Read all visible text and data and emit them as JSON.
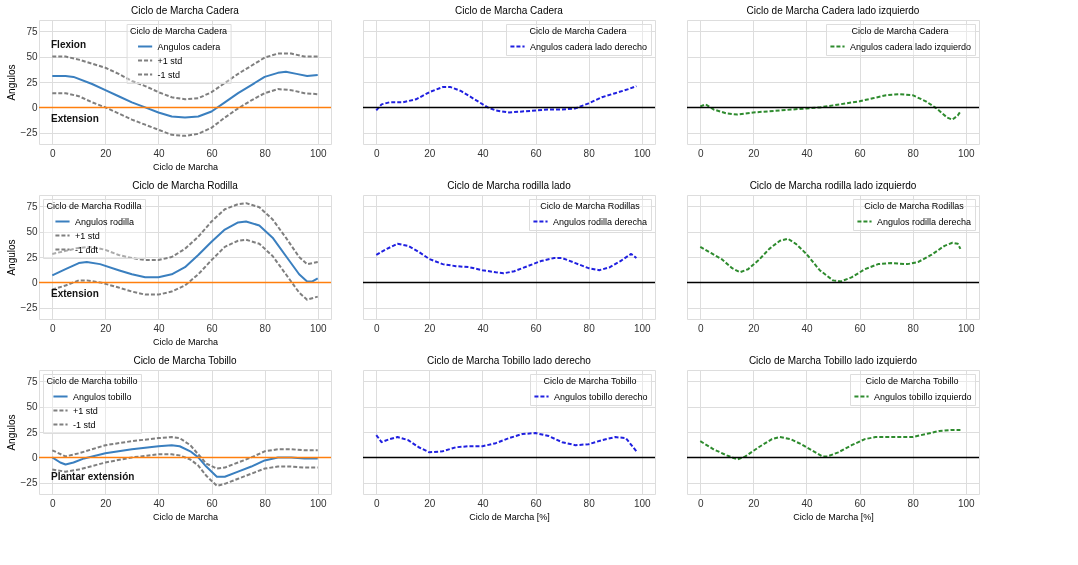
{
  "chart_data": [
    {
      "type": "line",
      "title": "Ciclo de Marcha Cadera",
      "xlabel": "Ciclo de Marcha",
      "ylabel": "Angulos",
      "legend_title": "Ciclo de Marcha Cadera",
      "legend": "top",
      "grid": true,
      "xlim": [
        -5,
        105
      ],
      "ylim": [
        -36,
        86
      ],
      "xticks": [
        0,
        20,
        40,
        60,
        80,
        100
      ],
      "yticks": [
        -25,
        0,
        25,
        50,
        75
      ],
      "ref_lines": [
        {
          "axis": "y",
          "value": 0,
          "color": "#ff7f0e"
        }
      ],
      "annotations": [
        "Flexion",
        "Extension"
      ],
      "series": [
        {
          "name": "Angulos cadera",
          "color": "#3a7fbf",
          "line_style": "solid",
          "x": [
            0,
            5,
            8,
            15,
            20,
            25,
            30,
            35,
            40,
            45,
            50,
            55,
            60,
            65,
            70,
            75,
            80,
            85,
            88,
            92,
            96,
            100
          ],
          "values": [
            31,
            31,
            30,
            23,
            17,
            11,
            5,
            0,
            -5,
            -9,
            -10,
            -9,
            -4,
            5,
            14,
            22,
            30,
            34,
            35,
            33,
            31,
            32
          ]
        },
        {
          "name": "+1 std",
          "color": "#7f7f7f",
          "line_style": "dashed",
          "x": [
            0,
            5,
            10,
            20,
            25,
            30,
            35,
            40,
            45,
            50,
            55,
            60,
            65,
            70,
            75,
            80,
            85,
            90,
            95,
            100
          ],
          "values": [
            50,
            50,
            47,
            39,
            33,
            26,
            21,
            15,
            10,
            8,
            9,
            15,
            24,
            33,
            41,
            49,
            53,
            53,
            50,
            50
          ]
        },
        {
          "name": "-1 std",
          "color": "#7f7f7f",
          "line_style": "dashed",
          "x": [
            0,
            5,
            10,
            15,
            20,
            25,
            30,
            35,
            40,
            45,
            50,
            55,
            60,
            65,
            70,
            75,
            80,
            85,
            90,
            95,
            100
          ],
          "values": [
            14,
            14,
            11,
            5,
            0,
            -6,
            -12,
            -17,
            -22,
            -27,
            -28,
            -26,
            -20,
            -10,
            -1,
            7,
            14,
            18,
            17,
            14,
            13
          ]
        }
      ]
    },
    {
      "type": "line",
      "title": "Ciclo de Marcha Cadera",
      "legend_title": "Ciclo de Marcha Cadera",
      "legend": "top right",
      "grid": true,
      "tick_labels": "x",
      "xlim": [
        -5,
        105
      ],
      "ylim": [
        -36,
        86
      ],
      "xticks": [
        0,
        20,
        40,
        60,
        80,
        100
      ],
      "yticks": [
        -25,
        0,
        25,
        50,
        75
      ],
      "ref_lines": [
        {
          "axis": "y",
          "value": 0,
          "color": "#000000"
        }
      ],
      "series": [
        {
          "name": "Angulos cadera lado derecho",
          "color": "#2020e0",
          "line_style": "dashed",
          "x": [
            0,
            2,
            5,
            10,
            15,
            20,
            25,
            28,
            32,
            37,
            42,
            45,
            50,
            55,
            60,
            65,
            70,
            75,
            80,
            85,
            90,
            95,
            98
          ],
          "values": [
            -3,
            3,
            5,
            5,
            8,
            15,
            20,
            20,
            16,
            8,
            0,
            -3,
            -5,
            -4,
            -3,
            -2,
            -2,
            -1,
            4,
            10,
            14,
            18,
            21
          ]
        }
      ]
    },
    {
      "type": "line",
      "title": "Ciclo de Marcha Cadera lado izquierdo",
      "legend_title": "Ciclo de Marcha Cadera",
      "legend": "top right",
      "grid": true,
      "tick_labels": "x",
      "xlim": [
        -5,
        105
      ],
      "ylim": [
        -36,
        86
      ],
      "xticks": [
        0,
        20,
        40,
        60,
        80,
        100
      ],
      "yticks": [
        -25,
        0,
        25,
        50,
        75
      ],
      "ref_lines": [
        {
          "axis": "y",
          "value": 0,
          "color": "#000000"
        }
      ],
      "series": [
        {
          "name": "Angulos cadera lado izquierdo",
          "color": "#2e8b2e",
          "line_style": "dashed",
          "x": [
            0,
            2,
            5,
            10,
            14,
            20,
            30,
            40,
            45,
            50,
            55,
            60,
            65,
            70,
            75,
            80,
            85,
            89,
            93,
            95,
            97,
            98
          ],
          "values": [
            1,
            3,
            -2,
            -6,
            -7,
            -5,
            -3,
            -1,
            0,
            2,
            4,
            6,
            9,
            12,
            13,
            12,
            6,
            -1,
            -10,
            -12,
            -8,
            -4
          ]
        }
      ]
    },
    {
      "type": "line",
      "title": "Ciclo de Marcha Rodilla",
      "xlabel": "Ciclo de Marcha",
      "ylabel": "Angulos",
      "legend_title": "Ciclo de Marcha Rodilla",
      "legend": "top left",
      "grid": true,
      "xlim": [
        -5,
        105
      ],
      "ylim": [
        -36,
        86
      ],
      "xticks": [
        0,
        20,
        40,
        60,
        80,
        100
      ],
      "yticks": [
        -25,
        0,
        25,
        50,
        75
      ],
      "ref_lines": [
        {
          "axis": "y",
          "value": 0,
          "color": "#ff7f0e"
        }
      ],
      "annotations": [
        "Extension"
      ],
      "series": [
        {
          "name": "Angulos rodilla",
          "color": "#3a7fbf",
          "line_style": "solid",
          "x": [
            0,
            5,
            10,
            13,
            18,
            25,
            30,
            35,
            40,
            45,
            50,
            55,
            60,
            65,
            70,
            73,
            78,
            83,
            88,
            93,
            96,
            98,
            100
          ],
          "values": [
            7,
            13,
            19,
            20,
            18,
            12,
            8,
            5,
            5,
            8,
            15,
            27,
            40,
            52,
            59,
            60,
            56,
            44,
            26,
            8,
            1,
            1,
            4
          ]
        },
        {
          "name": "+1 std",
          "color": "#7f7f7f",
          "line_style": "dashed",
          "x": [
            0,
            10,
            15,
            20,
            25,
            30,
            35,
            40,
            45,
            50,
            55,
            60,
            65,
            70,
            73,
            78,
            83,
            88,
            93,
            96,
            100
          ],
          "values": [
            28,
            34,
            35,
            32,
            27,
            24,
            22,
            22,
            25,
            33,
            45,
            60,
            72,
            77,
            78,
            74,
            62,
            44,
            25,
            18,
            20
          ]
        },
        {
          "name": "-1 ddt",
          "color": "#7f7f7f",
          "line_style": "dashed",
          "x": [
            0,
            5,
            10,
            13,
            18,
            25,
            30,
            35,
            40,
            45,
            50,
            55,
            60,
            65,
            70,
            73,
            78,
            83,
            88,
            93,
            96,
            100
          ],
          "values": [
            -7,
            -3,
            2,
            2,
            0,
            -5,
            -9,
            -12,
            -12,
            -9,
            -3,
            8,
            22,
            35,
            41,
            42,
            38,
            26,
            8,
            -10,
            -17,
            -14
          ]
        }
      ]
    },
    {
      "type": "line",
      "title": "Ciclo de Marcha rodilla lado",
      "legend_title": "Ciclo de Marcha Rodillas",
      "legend": "top right",
      "grid": true,
      "tick_labels": "x",
      "xlim": [
        -5,
        105
      ],
      "ylim": [
        -36,
        86
      ],
      "xticks": [
        0,
        20,
        40,
        60,
        80,
        100
      ],
      "yticks": [
        -25,
        0,
        25,
        50,
        75
      ],
      "ref_lines": [
        {
          "axis": "y",
          "value": 0,
          "color": "#000000"
        }
      ],
      "series": [
        {
          "name": "Angulos rodilla derecha",
          "color": "#2020e0",
          "line_style": "dashed",
          "x": [
            0,
            4,
            8,
            12,
            16,
            20,
            25,
            30,
            35,
            40,
            45,
            48,
            52,
            57,
            62,
            67,
            70,
            75,
            80,
            84,
            88,
            92,
            96,
            98
          ],
          "values": [
            27,
            33,
            38,
            36,
            30,
            23,
            18,
            16,
            15,
            12,
            10,
            9,
            11,
            16,
            21,
            24,
            24,
            19,
            14,
            12,
            15,
            21,
            28,
            24
          ]
        }
      ]
    },
    {
      "type": "line",
      "title": "Ciclo de Marcha rodilla lado izquierdo",
      "legend_title": "Ciclo de Marcha Rodillas",
      "legend": "top right",
      "grid": true,
      "tick_labels": "x",
      "xlim": [
        -5,
        105
      ],
      "ylim": [
        -36,
        86
      ],
      "xticks": [
        0,
        20,
        40,
        60,
        80,
        100
      ],
      "yticks": [
        -25,
        0,
        25,
        50,
        75
      ],
      "ref_lines": [
        {
          "axis": "y",
          "value": 0,
          "color": "#000000"
        }
      ],
      "series": [
        {
          "name": "Angulos rodilla derecha",
          "color": "#2e8b2e",
          "line_style": "dashed",
          "x": [
            0,
            4,
            8,
            12,
            15,
            18,
            22,
            26,
            30,
            33,
            36,
            40,
            45,
            50,
            53,
            57,
            62,
            67,
            72,
            78,
            82,
            87,
            92,
            95,
            97,
            98
          ],
          "values": [
            35,
            29,
            23,
            14,
            10,
            13,
            22,
            33,
            41,
            43,
            38,
            28,
            12,
            2,
            1,
            5,
            13,
            18,
            19,
            18,
            20,
            27,
            36,
            39,
            38,
            33
          ]
        }
      ]
    },
    {
      "type": "line",
      "title": "Ciclo de Marcha Tobillo",
      "xlabel": "Ciclo de Marcha",
      "ylabel": "Angulos",
      "legend_title": "Ciclo de Marcha tobillo",
      "legend": "top left",
      "grid": true,
      "xlim": [
        -5,
        105
      ],
      "ylim": [
        -36,
        86
      ],
      "xticks": [
        0,
        20,
        40,
        60,
        80,
        100
      ],
      "yticks": [
        -25,
        0,
        25,
        50,
        75
      ],
      "ref_lines": [
        {
          "axis": "y",
          "value": 0,
          "color": "#ff7f0e"
        }
      ],
      "annotations": [
        "Plantar extensión"
      ],
      "series": [
        {
          "name": "Angulos tobillo",
          "color": "#3a7fbf",
          "line_style": "solid",
          "x": [
            0,
            3,
            5,
            8,
            12,
            20,
            30,
            40,
            45,
            48,
            52,
            55,
            58,
            62,
            65,
            70,
            75,
            80,
            85,
            90,
            95,
            100
          ],
          "values": [
            0,
            -5,
            -7,
            -5,
            -1,
            4,
            8,
            11,
            12,
            11,
            6,
            0,
            -9,
            -19,
            -19,
            -14,
            -9,
            -3,
            0,
            0,
            -1,
            -1
          ]
        },
        {
          "name": "+1 std",
          "color": "#7f7f7f",
          "line_style": "dashed",
          "x": [
            0,
            5,
            10,
            20,
            30,
            40,
            45,
            48,
            52,
            55,
            58,
            62,
            65,
            70,
            75,
            80,
            85,
            90,
            95,
            100
          ],
          "values": [
            7,
            1,
            4,
            12,
            16,
            19,
            20,
            19,
            12,
            3,
            -6,
            -11,
            -10,
            -5,
            0,
            6,
            8,
            8,
            7,
            7
          ]
        },
        {
          "name": "-1 std",
          "color": "#7f7f7f",
          "line_style": "dashed",
          "x": [
            0,
            5,
            10,
            20,
            30,
            40,
            45,
            48,
            52,
            55,
            58,
            62,
            65,
            70,
            75,
            80,
            85,
            90,
            95,
            100
          ],
          "values": [
            -12,
            -14,
            -12,
            -5,
            0,
            3,
            3,
            2,
            -2,
            -8,
            -18,
            -28,
            -26,
            -21,
            -16,
            -11,
            -9,
            -9,
            -10,
            -10
          ]
        }
      ]
    },
    {
      "type": "line",
      "title": "Ciclo de Marcha Tobillo lado derecho",
      "xlabel": "Ciclo de Marcha [%]",
      "legend_title": "Ciclo de Marcha Tobillo",
      "legend": "top right",
      "grid": true,
      "tick_labels": "x",
      "xlim": [
        -5,
        105
      ],
      "ylim": [
        -36,
        86
      ],
      "xticks": [
        0,
        20,
        40,
        60,
        80,
        100
      ],
      "yticks": [
        -25,
        0,
        25,
        50,
        75
      ],
      "ref_lines": [
        {
          "axis": "y",
          "value": 0,
          "color": "#000000"
        }
      ],
      "series": [
        {
          "name": "Angulos tobillo derecho",
          "color": "#2020e0",
          "line_style": "dashed",
          "x": [
            0,
            2,
            5,
            8,
            12,
            16,
            20,
            25,
            30,
            35,
            40,
            45,
            50,
            55,
            60,
            65,
            70,
            75,
            80,
            85,
            90,
            94,
            98
          ],
          "values": [
            22,
            15,
            18,
            20,
            17,
            10,
            5,
            6,
            10,
            11,
            11,
            14,
            19,
            23,
            24,
            21,
            15,
            12,
            13,
            17,
            20,
            19,
            6
          ]
        }
      ]
    },
    {
      "type": "line",
      "title": "Ciclo de Marcha Tobillo lado izquierdo",
      "xlabel": "Ciclo de Marcha [%]",
      "legend_title": "Ciclo de Marcha Tobillo",
      "legend": "top right",
      "grid": true,
      "tick_labels": "x",
      "xlim": [
        -5,
        105
      ],
      "ylim": [
        -36,
        86
      ],
      "xticks": [
        0,
        20,
        40,
        60,
        80,
        100
      ],
      "yticks": [
        -25,
        0,
        25,
        50,
        75
      ],
      "ref_lines": [
        {
          "axis": "y",
          "value": 0,
          "color": "#000000"
        }
      ],
      "series": [
        {
          "name": "Angulos tobillo izquierdo",
          "color": "#2e8b2e",
          "line_style": "dashed",
          "x": [
            0,
            5,
            10,
            14,
            17,
            22,
            27,
            30,
            34,
            38,
            42,
            46,
            48,
            52,
            57,
            62,
            66,
            70,
            75,
            80,
            85,
            90,
            95,
            98
          ],
          "values": [
            16,
            8,
            2,
            -2,
            1,
            10,
            18,
            20,
            18,
            13,
            7,
            1,
            1,
            5,
            12,
            18,
            20,
            20,
            20,
            20,
            23,
            26,
            27,
            27
          ]
        }
      ]
    }
  ]
}
